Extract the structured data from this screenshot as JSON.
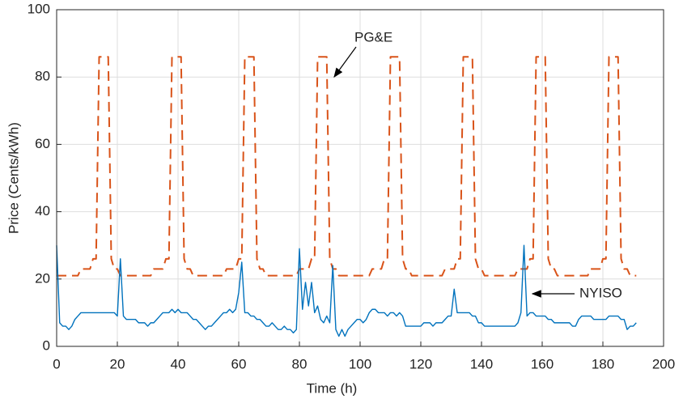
{
  "chart_data": {
    "type": "line",
    "x_label": "Time (h)",
    "y_label": "Price (Cents/kWh)",
    "xlim": [
      0,
      200
    ],
    "ylim": [
      0,
      100
    ],
    "xticks": [
      0,
      20,
      40,
      60,
      80,
      100,
      120,
      140,
      160,
      180,
      200
    ],
    "yticks": [
      0,
      20,
      40,
      60,
      80,
      100
    ],
    "grid": true,
    "x": [
      0,
      1,
      2,
      3,
      4,
      5,
      6,
      7,
      8,
      9,
      10,
      11,
      12,
      13,
      14,
      15,
      16,
      17,
      18,
      19,
      20,
      21,
      22,
      23,
      24,
      25,
      26,
      27,
      28,
      29,
      30,
      31,
      32,
      33,
      34,
      35,
      36,
      37,
      38,
      39,
      40,
      41,
      42,
      43,
      44,
      45,
      46,
      47,
      48,
      49,
      50,
      51,
      52,
      53,
      54,
      55,
      56,
      57,
      58,
      59,
      60,
      61,
      62,
      63,
      64,
      65,
      66,
      67,
      68,
      69,
      70,
      71,
      72,
      73,
      74,
      75,
      76,
      77,
      78,
      79,
      80,
      81,
      82,
      83,
      84,
      85,
      86,
      87,
      88,
      89,
      90,
      91,
      92,
      93,
      94,
      95,
      96,
      97,
      98,
      99,
      100,
      101,
      102,
      103,
      104,
      105,
      106,
      107,
      108,
      109,
      110,
      111,
      112,
      113,
      114,
      115,
      116,
      117,
      118,
      119,
      120,
      121,
      122,
      123,
      124,
      125,
      126,
      127,
      128,
      129,
      130,
      131,
      132,
      133,
      134,
      135,
      136,
      137,
      138,
      139,
      140,
      141,
      142,
      143,
      144,
      145,
      146,
      147,
      148,
      149,
      150,
      151,
      152,
      153,
      154,
      155,
      156,
      157,
      158,
      159,
      160,
      161,
      162,
      163,
      164,
      165,
      166,
      167,
      168,
      169,
      170,
      171,
      172,
      173,
      174,
      175,
      176,
      177,
      178,
      179,
      180,
      181,
      182,
      183,
      184,
      185,
      186,
      187,
      188,
      189,
      190,
      191
    ],
    "series": [
      {
        "name": "PG&E",
        "color": "#D95319",
        "dashed": true,
        "values": [
          21,
          21,
          21,
          21,
          21,
          21,
          21,
          21,
          23,
          23,
          23,
          23,
          26,
          26,
          86,
          86,
          86,
          86,
          26,
          23,
          23,
          21,
          21,
          21,
          21,
          21,
          21,
          21,
          21,
          21,
          21,
          21,
          23,
          23,
          23,
          23,
          26,
          26,
          86,
          86,
          86,
          86,
          26,
          23,
          23,
          21,
          21,
          21,
          21,
          21,
          21,
          21,
          21,
          21,
          21,
          21,
          23,
          23,
          23,
          23,
          26,
          26,
          86,
          86,
          86,
          86,
          26,
          23,
          23,
          21,
          21,
          21,
          21,
          21,
          21,
          21,
          21,
          21,
          21,
          21,
          23,
          23,
          23,
          23,
          26,
          26,
          86,
          86,
          86,
          86,
          26,
          23,
          23,
          21,
          21,
          21,
          21,
          21,
          21,
          21,
          21,
          21,
          21,
          21,
          23,
          23,
          23,
          23,
          26,
          26,
          86,
          86,
          86,
          86,
          26,
          23,
          23,
          21,
          21,
          21,
          21,
          21,
          21,
          21,
          21,
          21,
          21,
          21,
          23,
          23,
          23,
          23,
          26,
          26,
          86,
          86,
          86,
          86,
          26,
          23,
          23,
          21,
          21,
          21,
          21,
          21,
          21,
          21,
          21,
          21,
          21,
          21,
          23,
          23,
          23,
          23,
          26,
          26,
          86,
          86,
          86,
          86,
          26,
          23,
          23,
          21,
          21,
          21,
          21,
          21,
          21,
          21,
          21,
          21,
          21,
          21,
          23,
          23,
          23,
          23,
          26,
          26,
          86,
          86,
          86,
          86,
          26,
          23,
          23,
          21,
          21,
          21
        ]
      },
      {
        "name": "NYISO",
        "color": "#0072BD",
        "dashed": false,
        "values": [
          30,
          7,
          6,
          6,
          5,
          6,
          8,
          9,
          10,
          10,
          10,
          10,
          10,
          10,
          10,
          10,
          10,
          10,
          10,
          10,
          9,
          26,
          9,
          8,
          8,
          8,
          8,
          7,
          7,
          7,
          6,
          7,
          7,
          8,
          9,
          10,
          10,
          10,
          11,
          10,
          11,
          10,
          10,
          10,
          9,
          8,
          8,
          7,
          6,
          5,
          6,
          6,
          7,
          8,
          9,
          10,
          10,
          11,
          10,
          11,
          16,
          25,
          10,
          10,
          9,
          9,
          8,
          8,
          7,
          6,
          6,
          7,
          6,
          5,
          5,
          6,
          5,
          5,
          4,
          5,
          29,
          11,
          19,
          12,
          19,
          10,
          12,
          8,
          7,
          9,
          7,
          24,
          5,
          3,
          5,
          3,
          5,
          6,
          7,
          8,
          8,
          7,
          8,
          10,
          11,
          11,
          10,
          10,
          10,
          9,
          10,
          10,
          9,
          10,
          9,
          6,
          6,
          6,
          6,
          6,
          6,
          7,
          7,
          7,
          6,
          7,
          7,
          7,
          8,
          9,
          9,
          17,
          10,
          10,
          10,
          10,
          10,
          9,
          9,
          7,
          7,
          6,
          6,
          6,
          6,
          6,
          6,
          6,
          6,
          6,
          6,
          6,
          7,
          10,
          30,
          9,
          10,
          10,
          9,
          9,
          9,
          9,
          8,
          8,
          7,
          7,
          7,
          7,
          7,
          7,
          6,
          6,
          8,
          9,
          9,
          9,
          9,
          8,
          8,
          8,
          8,
          8,
          9,
          9,
          9,
          9,
          8,
          8,
          5,
          6,
          6,
          7
        ]
      }
    ]
  }
}
